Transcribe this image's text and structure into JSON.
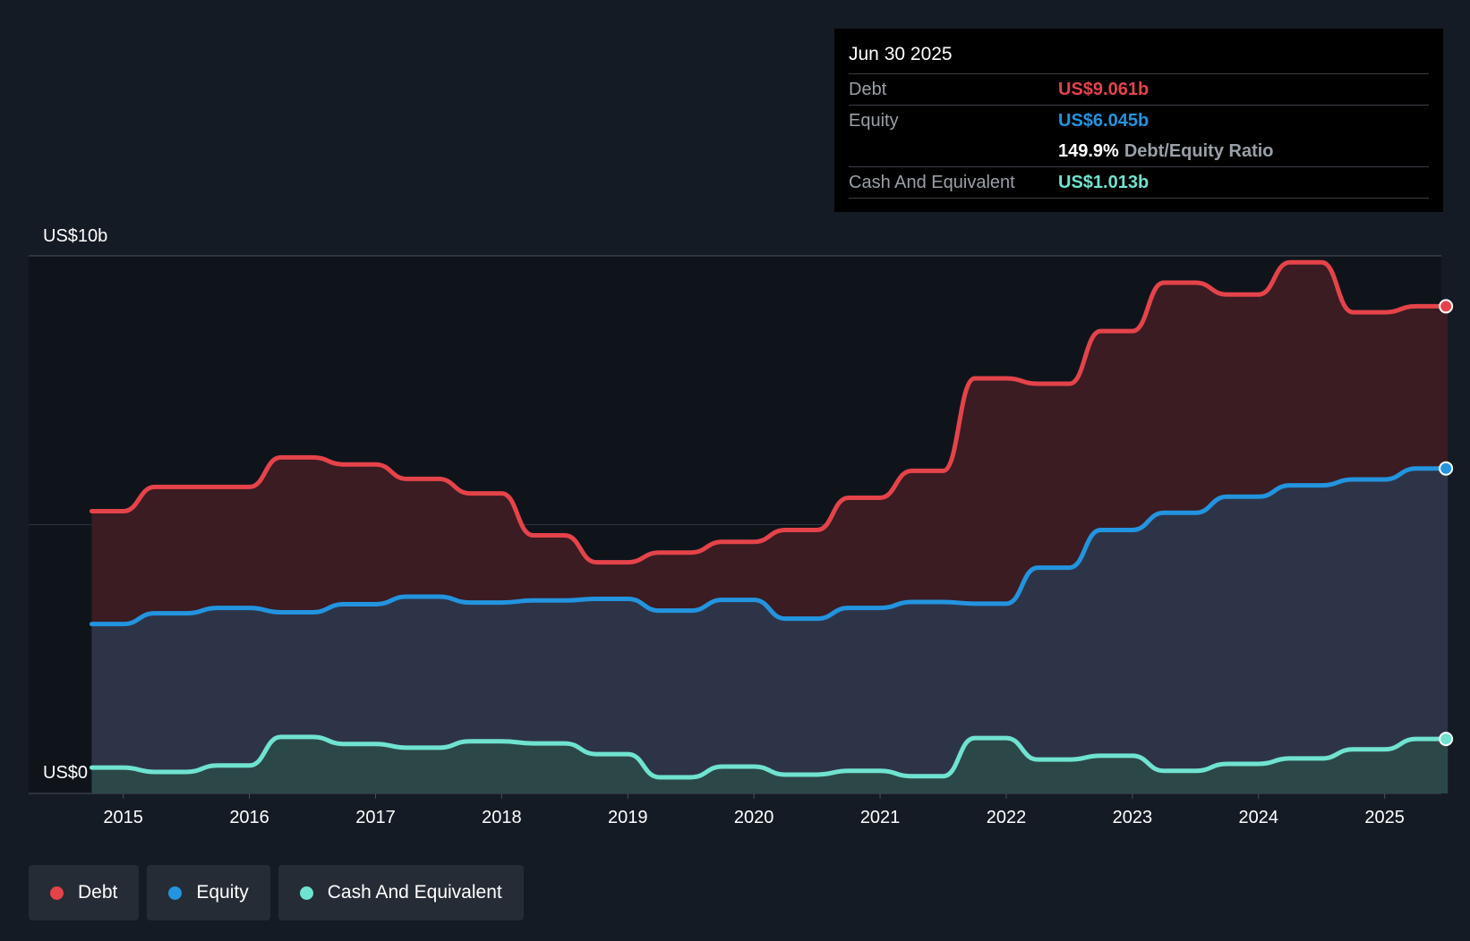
{
  "chart_data": {
    "type": "area",
    "y_unit_label_top": "US$10b",
    "y_unit_label_bottom": "US$0",
    "ylim": [
      0,
      10
    ],
    "xlim": [
      2014.25,
      2025.5
    ],
    "x_ticks": [
      "2015",
      "2016",
      "2017",
      "2018",
      "2019",
      "2020",
      "2021",
      "2022",
      "2023",
      "2024",
      "2025"
    ],
    "series": [
      {
        "name": "Debt",
        "color": "#e5434a",
        "points": [
          [
            2014.75,
            5.25
          ],
          [
            2015.0,
            5.25
          ],
          [
            2015.25,
            5.7
          ],
          [
            2015.5,
            5.7
          ],
          [
            2015.75,
            5.7
          ],
          [
            2016.0,
            5.7
          ],
          [
            2016.25,
            6.25
          ],
          [
            2016.5,
            6.25
          ],
          [
            2016.75,
            6.12
          ],
          [
            2017.0,
            6.12
          ],
          [
            2017.25,
            5.85
          ],
          [
            2017.5,
            5.85
          ],
          [
            2017.75,
            5.58
          ],
          [
            2018.0,
            5.58
          ],
          [
            2018.25,
            4.8
          ],
          [
            2018.5,
            4.8
          ],
          [
            2018.75,
            4.3
          ],
          [
            2019.0,
            4.3
          ],
          [
            2019.25,
            4.48
          ],
          [
            2019.5,
            4.48
          ],
          [
            2019.75,
            4.68
          ],
          [
            2020.0,
            4.68
          ],
          [
            2020.25,
            4.9
          ],
          [
            2020.5,
            4.9
          ],
          [
            2020.75,
            5.5
          ],
          [
            2021.0,
            5.5
          ],
          [
            2021.25,
            6.0
          ],
          [
            2021.5,
            6.0
          ],
          [
            2021.75,
            7.72
          ],
          [
            2022.0,
            7.72
          ],
          [
            2022.25,
            7.62
          ],
          [
            2022.5,
            7.62
          ],
          [
            2022.75,
            8.6
          ],
          [
            2023.0,
            8.6
          ],
          [
            2023.25,
            9.5
          ],
          [
            2023.5,
            9.5
          ],
          [
            2023.75,
            9.28
          ],
          [
            2024.0,
            9.28
          ],
          [
            2024.25,
            9.88
          ],
          [
            2024.5,
            9.88
          ],
          [
            2024.75,
            8.95
          ],
          [
            2025.0,
            8.95
          ],
          [
            2025.25,
            9.061
          ],
          [
            2025.5,
            9.061
          ]
        ]
      },
      {
        "name": "Equity",
        "color": "#2394df",
        "points": [
          [
            2014.75,
            3.15
          ],
          [
            2015.0,
            3.15
          ],
          [
            2015.25,
            3.35
          ],
          [
            2015.5,
            3.35
          ],
          [
            2015.75,
            3.45
          ],
          [
            2016.0,
            3.45
          ],
          [
            2016.25,
            3.37
          ],
          [
            2016.5,
            3.37
          ],
          [
            2016.75,
            3.52
          ],
          [
            2017.0,
            3.52
          ],
          [
            2017.25,
            3.66
          ],
          [
            2017.5,
            3.66
          ],
          [
            2017.75,
            3.55
          ],
          [
            2018.0,
            3.55
          ],
          [
            2018.25,
            3.59
          ],
          [
            2018.5,
            3.59
          ],
          [
            2018.75,
            3.62
          ],
          [
            2019.0,
            3.62
          ],
          [
            2019.25,
            3.4
          ],
          [
            2019.5,
            3.4
          ],
          [
            2019.75,
            3.6
          ],
          [
            2020.0,
            3.6
          ],
          [
            2020.25,
            3.25
          ],
          [
            2020.5,
            3.25
          ],
          [
            2020.75,
            3.45
          ],
          [
            2021.0,
            3.45
          ],
          [
            2021.25,
            3.56
          ],
          [
            2021.5,
            3.56
          ],
          [
            2021.75,
            3.53
          ],
          [
            2022.0,
            3.53
          ],
          [
            2022.25,
            4.2
          ],
          [
            2022.5,
            4.2
          ],
          [
            2022.75,
            4.9
          ],
          [
            2023.0,
            4.9
          ],
          [
            2023.25,
            5.22
          ],
          [
            2023.5,
            5.22
          ],
          [
            2023.75,
            5.52
          ],
          [
            2024.0,
            5.52
          ],
          [
            2024.25,
            5.73
          ],
          [
            2024.5,
            5.73
          ],
          [
            2024.75,
            5.84
          ],
          [
            2025.0,
            5.84
          ],
          [
            2025.25,
            6.045
          ],
          [
            2025.5,
            6.045
          ]
        ]
      },
      {
        "name": "Cash And Equivalent",
        "color": "#6fe3d0",
        "points": [
          [
            2014.75,
            0.48
          ],
          [
            2015.0,
            0.48
          ],
          [
            2015.25,
            0.4
          ],
          [
            2015.5,
            0.4
          ],
          [
            2015.75,
            0.52
          ],
          [
            2016.0,
            0.52
          ],
          [
            2016.25,
            1.05
          ],
          [
            2016.5,
            1.05
          ],
          [
            2016.75,
            0.92
          ],
          [
            2017.0,
            0.92
          ],
          [
            2017.25,
            0.85
          ],
          [
            2017.5,
            0.85
          ],
          [
            2017.75,
            0.97
          ],
          [
            2018.0,
            0.97
          ],
          [
            2018.25,
            0.93
          ],
          [
            2018.5,
            0.93
          ],
          [
            2018.75,
            0.73
          ],
          [
            2019.0,
            0.73
          ],
          [
            2019.25,
            0.3
          ],
          [
            2019.5,
            0.3
          ],
          [
            2019.75,
            0.5
          ],
          [
            2020.0,
            0.5
          ],
          [
            2020.25,
            0.35
          ],
          [
            2020.5,
            0.35
          ],
          [
            2020.75,
            0.42
          ],
          [
            2021.0,
            0.42
          ],
          [
            2021.25,
            0.32
          ],
          [
            2021.5,
            0.32
          ],
          [
            2021.75,
            1.03
          ],
          [
            2022.0,
            1.03
          ],
          [
            2022.25,
            0.63
          ],
          [
            2022.5,
            0.63
          ],
          [
            2022.75,
            0.7
          ],
          [
            2023.0,
            0.7
          ],
          [
            2023.25,
            0.42
          ],
          [
            2023.5,
            0.42
          ],
          [
            2023.75,
            0.55
          ],
          [
            2024.0,
            0.55
          ],
          [
            2024.25,
            0.65
          ],
          [
            2024.5,
            0.65
          ],
          [
            2024.75,
            0.82
          ],
          [
            2025.0,
            0.82
          ],
          [
            2025.25,
            1.013
          ],
          [
            2025.5,
            1.013
          ]
        ]
      }
    ]
  },
  "tooltip": {
    "date": "Jun 30 2025",
    "debt_label": "Debt",
    "debt_value": "US$9.061b",
    "equity_label": "Equity",
    "equity_value": "US$6.045b",
    "ratio_value": "149.9%",
    "ratio_label": "Debt/Equity Ratio",
    "cash_label": "Cash And Equivalent",
    "cash_value": "US$1.013b"
  },
  "legend": {
    "debt": "Debt",
    "equity": "Equity",
    "cash": "Cash And Equivalent"
  },
  "colors": {
    "debt": "#e5434a",
    "equity": "#2394df",
    "cash": "#6fe3d0",
    "debt_fill": "#3a1c22",
    "equity_fill": "#2e3448",
    "cash_fill": "#2c4748",
    "plot_bg": "#0f141b",
    "page_bg": "#151b24"
  }
}
